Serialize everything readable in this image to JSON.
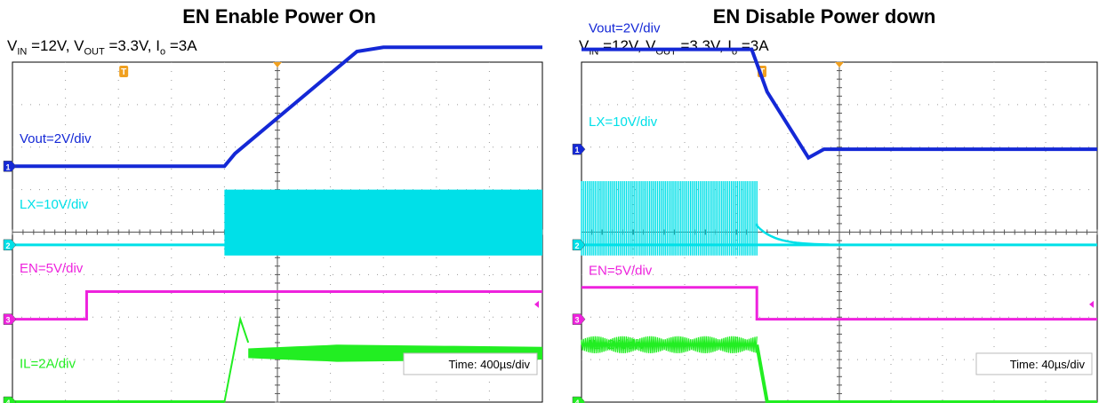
{
  "chart_data": [
    {
      "type": "line",
      "title": "EN Enable Power On",
      "condition": {
        "vin_sub": "IN",
        "vout_sub": "OUT",
        "io_sub": "o",
        "vin": "12V",
        "vout": "3.3V",
        "io": "3A",
        "text_vin": "V",
        "text_vout": ", V",
        "text_io": ", I"
      },
      "time_label": "Time: 400µs/div",
      "time_div_us": 400,
      "divisions": {
        "x": 10,
        "y": 8
      },
      "trigger_marker": "T",
      "series": [
        {
          "name": "Vout=2V/div",
          "channel": "1",
          "color": "#1428d6",
          "x_div": [
            0,
            4.0,
            4.2,
            6.5,
            7.0,
            10
          ],
          "y_div": [
            5.55,
            5.55,
            5.85,
            8.25,
            8.35,
            8.35
          ]
        },
        {
          "name": "LX=10V/div",
          "channel": "2",
          "color": "#00e0e8",
          "burst_start_div": 4.0,
          "burst_end_div": 10,
          "baseline_div": 3.7,
          "burst_high_div": 5.0,
          "burst_low_div": 3.45
        },
        {
          "name": "EN=5V/div",
          "channel": "3",
          "color": "#ee22dd",
          "x_div": [
            0,
            1.4,
            1.4,
            10
          ],
          "y_div": [
            1.95,
            1.95,
            2.6,
            2.6
          ]
        },
        {
          "name": "IL=2A/div",
          "channel": "4",
          "color": "#22ee22",
          "ramp_start_div": 4.0,
          "peak_div": 4.3,
          "peak_value_div": 1.95,
          "settle_div": 4.45,
          "mean_div": 1.15,
          "ripple_start_div": 0.45,
          "ripple_end_div": 0.3,
          "baseline_div": 0.0
        }
      ]
    },
    {
      "type": "line",
      "title": "EN Disable Power down",
      "condition": {
        "vin_sub": "IN",
        "vout_sub": "OUT",
        "io_sub": "o",
        "vin": "12V",
        "vout": "3.3V",
        "io": "3A",
        "text_vin": "V",
        "text_vout": ", V",
        "text_io": ", I"
      },
      "time_label": "Time: 40µs/div",
      "time_div_us": 40,
      "divisions": {
        "x": 10,
        "y": 8
      },
      "trigger_marker": "T",
      "series": [
        {
          "name": "Vout=2V/div",
          "channel": "1",
          "color": "#1428d6",
          "x_div": [
            0,
            3.3,
            3.6,
            4.4,
            4.7,
            10
          ],
          "y_div": [
            8.3,
            8.3,
            7.3,
            5.75,
            5.95,
            5.95
          ]
        },
        {
          "name": "LX=10V/div",
          "channel": "2",
          "color": "#00e0e8",
          "burst_start_div": 0,
          "burst_end_div": 3.4,
          "baseline_div": 3.7,
          "burst_high_div": 5.2,
          "burst_low_div": 3.45,
          "decay_end_div": 4.8
        },
        {
          "name": "EN=5V/div",
          "channel": "3",
          "color": "#ee22dd",
          "x_div": [
            0,
            3.4,
            3.4,
            10
          ],
          "y_div": [
            2.7,
            2.7,
            1.95,
            1.95
          ]
        },
        {
          "name": "IL=2A/div",
          "channel": "4",
          "color": "#22ee22",
          "mean_div": 1.35,
          "ripple_div": 0.4,
          "active_end_div": 3.4,
          "fall_end_div": 3.6,
          "baseline_div": 0.0
        }
      ]
    }
  ]
}
